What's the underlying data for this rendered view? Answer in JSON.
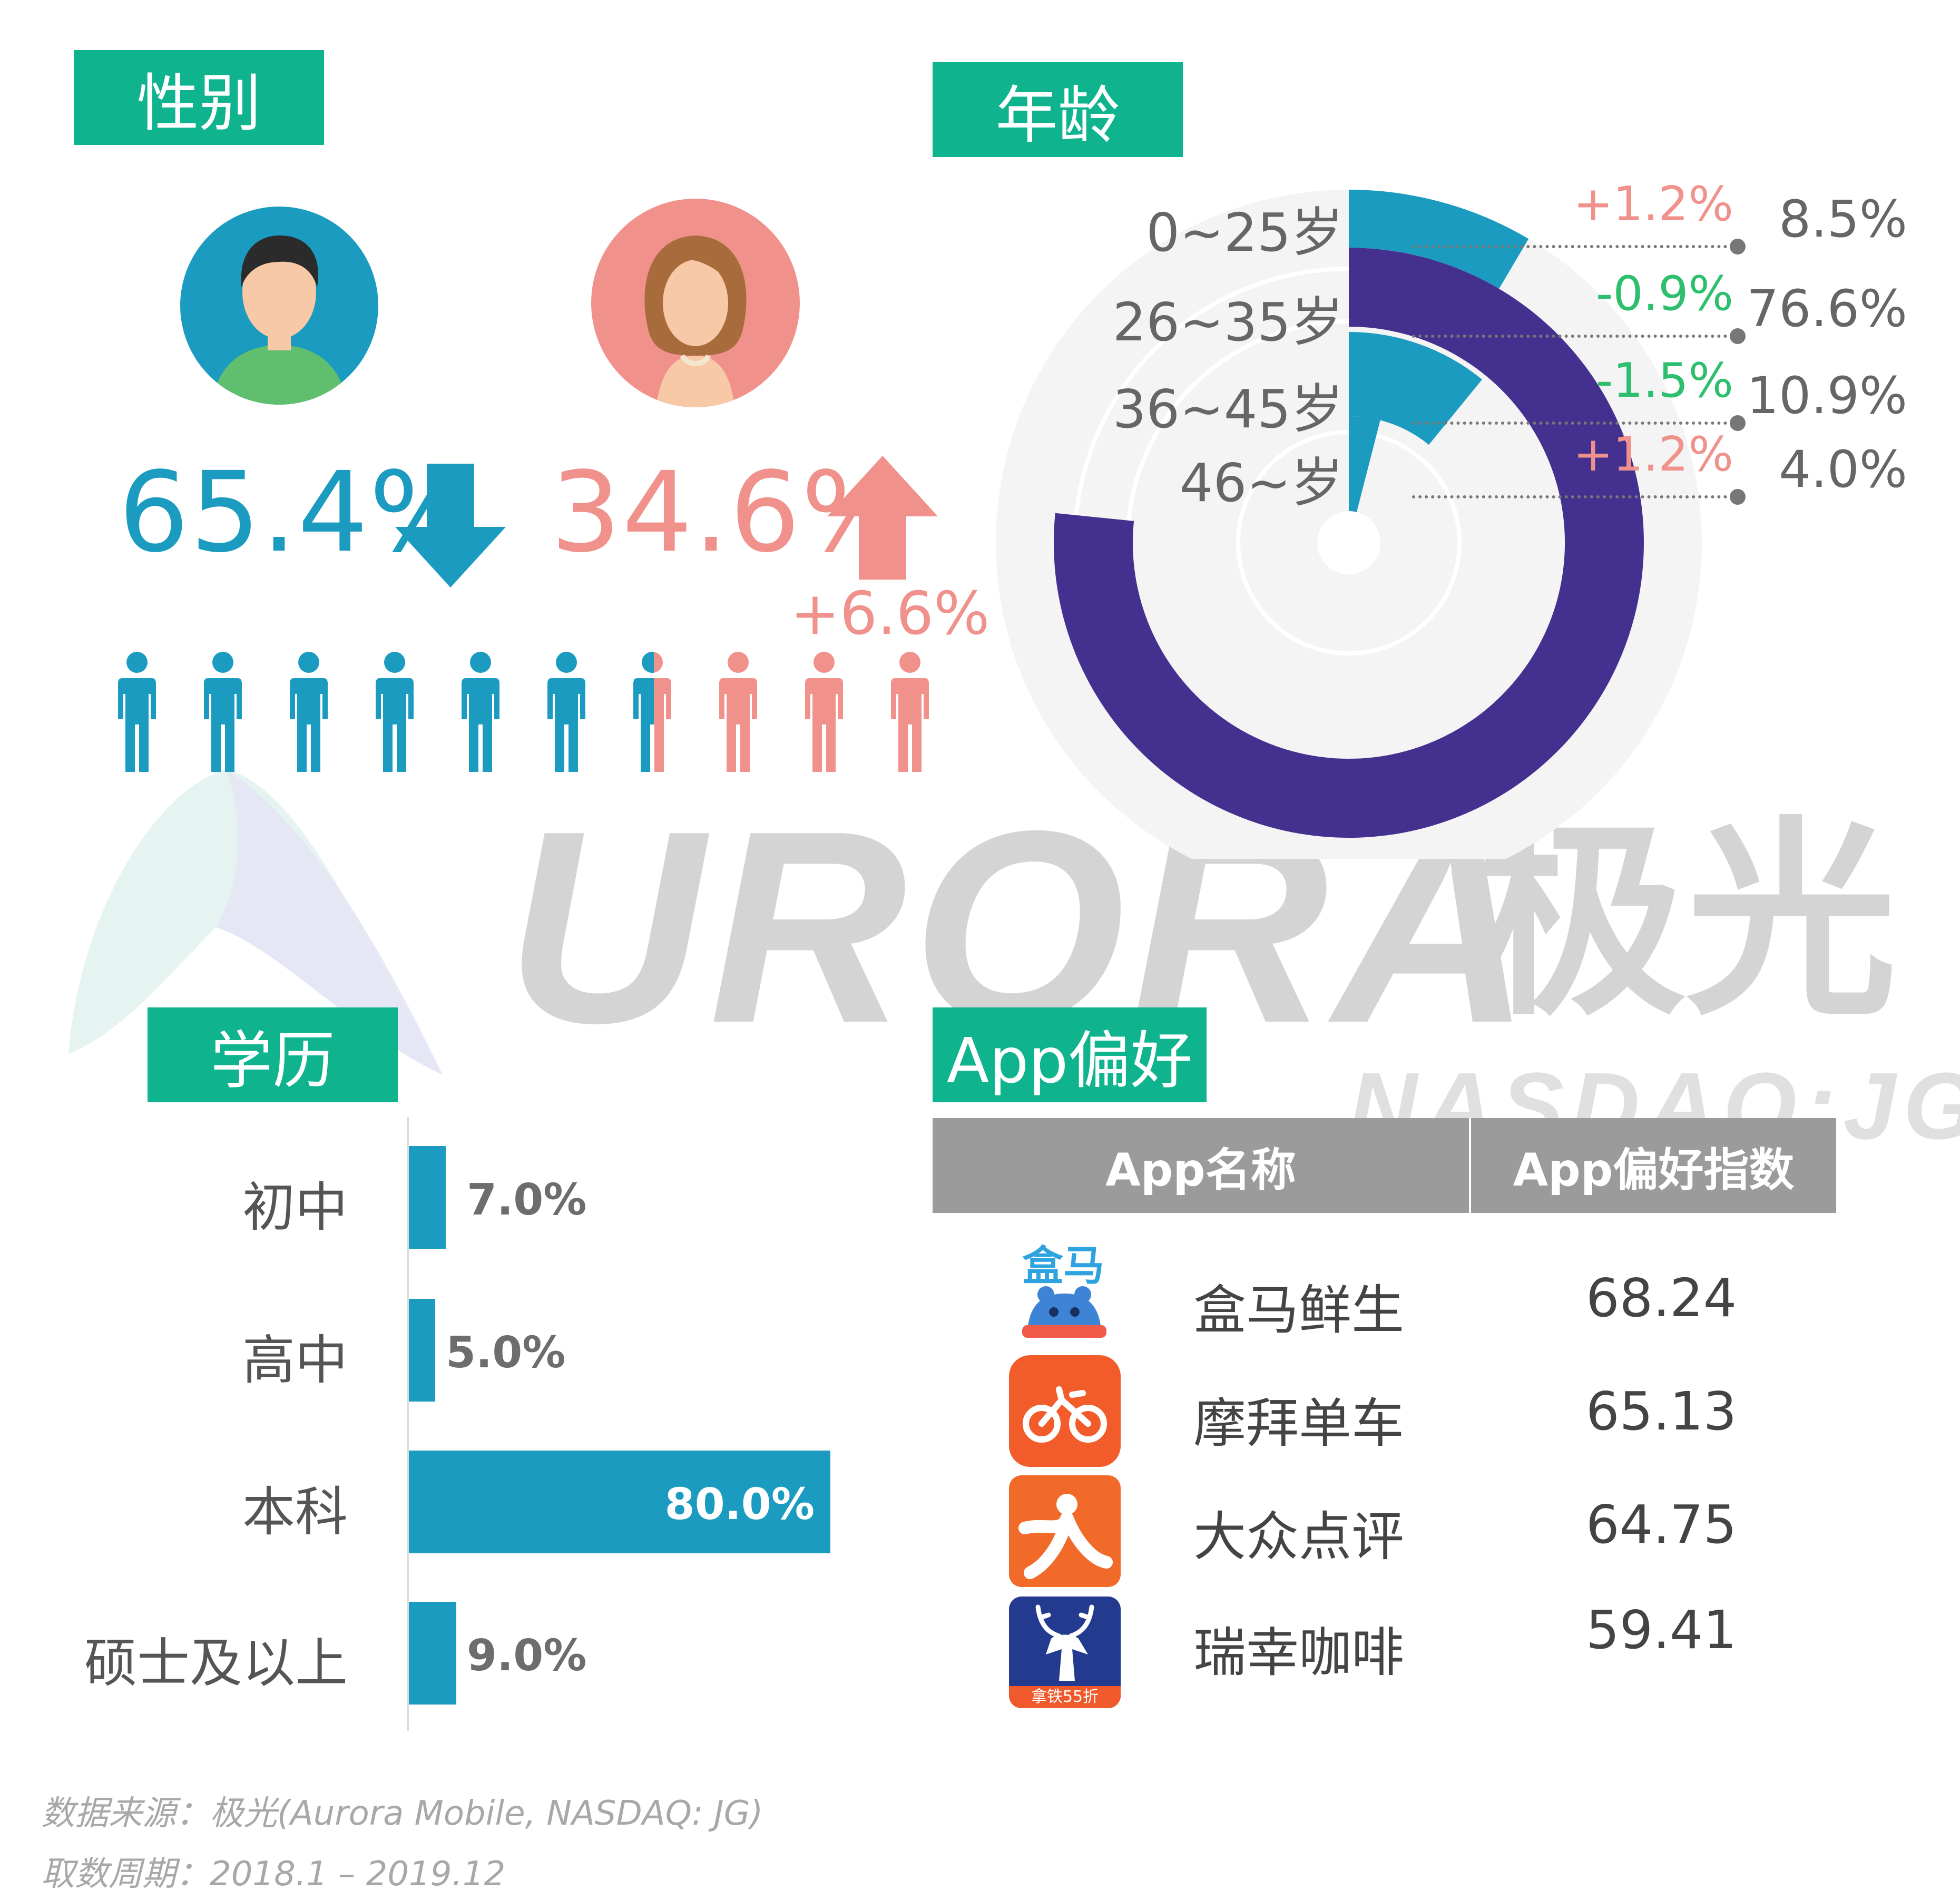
{
  "sections": {
    "gender": "性别",
    "age": "年龄",
    "education": "学历",
    "app_pref": "App偏好"
  },
  "gender": {
    "male_pct": "65.4%",
    "female_pct": "34.6%",
    "female_change": "+6.6%",
    "male_color": "#1a9bbf",
    "female_color": "#f0918b",
    "male_share": 0.654
  },
  "chart_data": [
    {
      "type": "pie",
      "variant": "radial-bar",
      "categories": [
        "0~25岁",
        "26~35岁",
        "36~45岁",
        "46~岁"
      ],
      "values": [
        8.5,
        76.6,
        10.9,
        4.0
      ],
      "value_labels": [
        "8.5%",
        "76.6%",
        "10.9%",
        "4.0%"
      ],
      "changes": [
        "+1.2%",
        "-0.9%",
        "-1.5%",
        "+1.2%"
      ],
      "colors": [
        "#1a9bbf",
        "#44318f",
        "#1a9bbf",
        "#1a9bbf"
      ],
      "change_colors": [
        "#f0918b",
        "#2ebf6e",
        "#2ebf6e",
        "#f0918b"
      ]
    },
    {
      "type": "bar",
      "orientation": "horizontal",
      "categories": [
        "初中",
        "高中",
        "本科",
        "硕士及以上"
      ],
      "values": [
        7.0,
        5.0,
        80.0,
        9.0
      ],
      "value_labels": [
        "7.0%",
        "5.0%",
        "80.0%",
        "9.0%"
      ],
      "color": "#1a9bbf"
    }
  ],
  "app_table": {
    "headers": [
      "App名称",
      "App偏好指数"
    ],
    "rows": [
      {
        "name": "盒马鲜生",
        "score": "68.24",
        "icon": "hema-icon"
      },
      {
        "name": "摩拜单车",
        "score": "65.13",
        "icon": "mobike-icon"
      },
      {
        "name": "大众点评",
        "score": "64.75",
        "icon": "dianping-icon"
      },
      {
        "name": "瑞幸咖啡",
        "score": "59.41",
        "icon": "luckin-icon"
      }
    ],
    "hema_logo_text": "盒马",
    "luckin_badge": "拿铁55折"
  },
  "watermark": {
    "brand": "URORA",
    "brand_cn": "极光",
    "ticker": "NASDAQ:JG"
  },
  "footer": {
    "source": "数据来源：极光(Aurora Mobile, NASDAQ: JG)",
    "period": "取数周期：2018.1 – 2019.12"
  }
}
